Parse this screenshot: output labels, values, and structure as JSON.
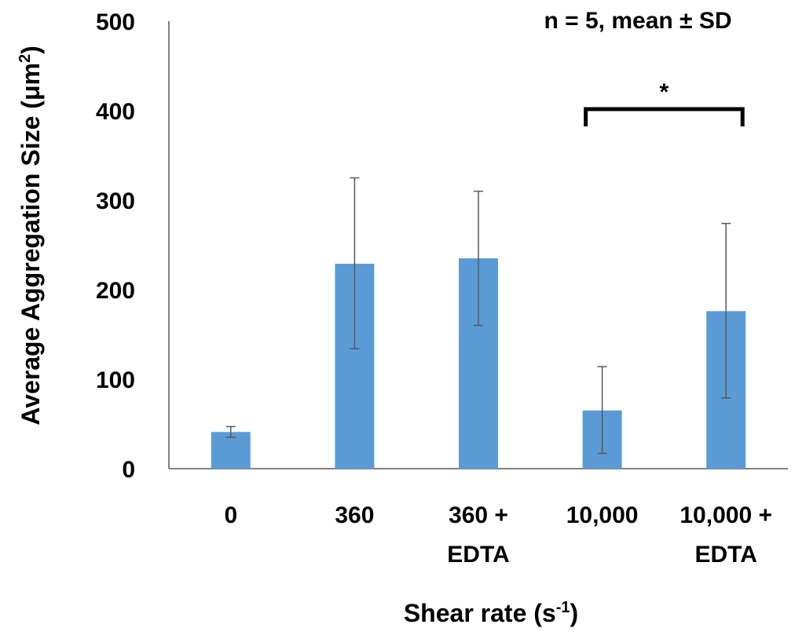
{
  "chart_data": {
    "type": "bar",
    "categories": [
      [
        "0"
      ],
      [
        "360"
      ],
      [
        "360 +",
        "EDTA"
      ],
      [
        "10,000"
      ],
      [
        "10,000 +",
        "EDTA"
      ]
    ],
    "values": [
      41,
      229,
      235,
      65,
      176
    ],
    "error_bars": {
      "upper": [
        47,
        325,
        310,
        114,
        274
      ],
      "lower": [
        35,
        134,
        160,
        17,
        79
      ]
    },
    "ylim": [
      0,
      500
    ],
    "yticks": [
      "0",
      "100",
      "200",
      "300",
      "400",
      "500"
    ],
    "ylabel": {
      "main": "Average Aggregation Size (μm",
      "sup": "2",
      "end": ")"
    },
    "xlabel": {
      "main": "Shear rate (s",
      "sup": "-1",
      "end": ")"
    },
    "annotation": "n = 5, mean ± SD",
    "significance": {
      "from_index": 3,
      "to_index": 4,
      "label": "*"
    },
    "bar_color": "#5B9BD5",
    "errorbar_color": "#595959",
    "grid": false
  }
}
